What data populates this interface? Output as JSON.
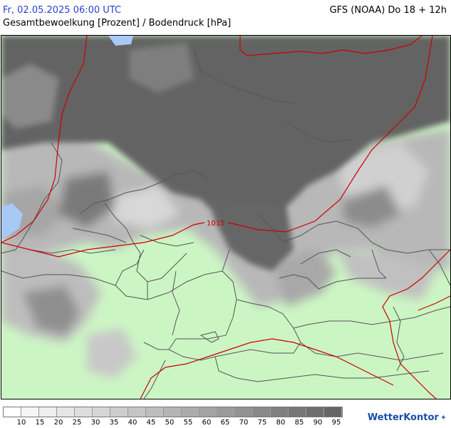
{
  "header": {
    "datetime": "Fr, 02.05.2025 06:00 UTC",
    "subtitle": "Gesamtbewoelkung [Prozent] / Bodendruck [hPa]",
    "model_run": "GFS (NOAA) Do 18 + 12h"
  },
  "map": {
    "isobar_label": "1015",
    "colors": {
      "clear": "#ccf5c4",
      "water": "#a8c8f5",
      "overcast": "#636363",
      "isobar": "#cc0000",
      "border": "#555555"
    }
  },
  "legend": {
    "labels": [
      "10",
      "15",
      "20",
      "25",
      "30",
      "35",
      "40",
      "45",
      "50",
      "55",
      "60",
      "65",
      "70",
      "75",
      "80",
      "85",
      "90",
      "95"
    ],
    "swatch_colors": [
      "#ffffff",
      "#f6f6f6",
      "#eeeeee",
      "#e6e6e6",
      "#dedede",
      "#d6d6d6",
      "#cdcdcd",
      "#c5c5c5",
      "#bdbdbd",
      "#b4b4b4",
      "#acacac",
      "#a3a3a3",
      "#9b9b9b",
      "#929292",
      "#898989",
      "#808080",
      "#777777",
      "#6e6e6e",
      "#656565"
    ]
  },
  "logo": {
    "text": "WetterKontor"
  }
}
